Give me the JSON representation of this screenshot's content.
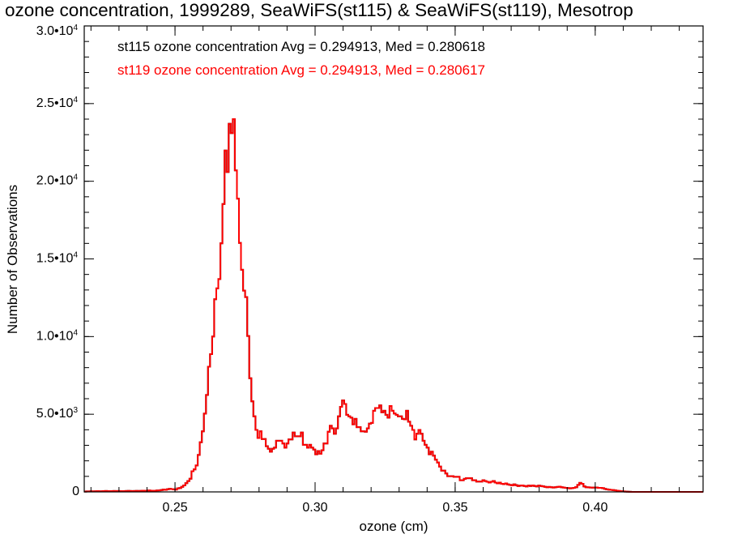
{
  "chart_data": {
    "type": "histogram",
    "title": "ozone concentration, 1999289, SeaWiFS(st115) & SeaWiFS(st119), Mesotrop",
    "xlabel": "ozone (cm)",
    "ylabel": "Number of Observations",
    "xlim": [
      0.2176,
      0.4385
    ],
    "ylim": [
      0,
      30000
    ],
    "x_ticks": [
      {
        "value": 0.25,
        "label": "0.25"
      },
      {
        "value": 0.3,
        "label": "0.30"
      },
      {
        "value": 0.35,
        "label": "0.35"
      },
      {
        "value": 0.4,
        "label": "0.40"
      }
    ],
    "y_ticks": [
      {
        "value": 0,
        "mantissa": "0",
        "exp": ""
      },
      {
        "value": 5000,
        "mantissa": "5.0•10",
        "exp": "3"
      },
      {
        "value": 10000,
        "mantissa": "1.0•10",
        "exp": "4"
      },
      {
        "value": 15000,
        "mantissa": "1.5•10",
        "exp": "4"
      },
      {
        "value": 20000,
        "mantissa": "2.0•10",
        "exp": "4"
      },
      {
        "value": 25000,
        "mantissa": "2.5•10",
        "exp": "4"
      },
      {
        "value": 30000,
        "mantissa": "3.0•10",
        "exp": "4"
      }
    ],
    "x_minor_step": 0.01,
    "y_minor_step": 1000,
    "grid": false,
    "legend_placement": "top-left",
    "series": [
      {
        "name": "st115",
        "color": "#000000",
        "label": "st115 ozone concentration Avg = 0.294913, Med = 0.280618"
      },
      {
        "name": "st119",
        "color": "#ff0000",
        "label": "st119 ozone concentration Avg = 0.294913, Med = 0.280617"
      }
    ],
    "counts": [
      20,
      30,
      30,
      40,
      30,
      40,
      50,
      40,
      40,
      50,
      60,
      50,
      40,
      50,
      60,
      50,
      60,
      50,
      40,
      50,
      60,
      70,
      60,
      50,
      60,
      70,
      60,
      70,
      80,
      70,
      80,
      90,
      80,
      70,
      80,
      90,
      100,
      120,
      150,
      130,
      170,
      200,
      180,
      160,
      150,
      230,
      250,
      330,
      420,
      560,
      700,
      850,
      1330,
      1450,
      1700,
      2380,
      3200,
      3900,
      5040,
      6240,
      8060,
      8870,
      10000,
      12400,
      13100,
      13700,
      16000,
      18530,
      21980,
      20600,
      23700,
      23100,
      24000,
      20700,
      18880,
      16030,
      14300,
      12960,
      12540,
      10040,
      7320,
      5830,
      4870,
      3990,
      3470,
      3900,
      3400,
      3400,
      2940,
      2780,
      2590,
      2780,
      2850,
      3290,
      3290,
      3290,
      3120,
      2850,
      3120,
      3380,
      3380,
      3820,
      3580,
      3580,
      3580,
      3820,
      3030,
      3030,
      2850,
      3030,
      2850,
      2730,
      2420,
      2630,
      2450,
      2680,
      3120,
      3120,
      3870,
      4260,
      4090,
      3740,
      4090,
      4870,
      5480,
      5890,
      5660,
      4960,
      4870,
      4780,
      4350,
      4700,
      4170,
      4170,
      3900,
      3900,
      3870,
      4090,
      4400,
      4440,
      5220,
      5400,
      5400,
      5570,
      5130,
      5220,
      4960,
      4780,
      5530,
      5220,
      5050,
      4960,
      4870,
      4870,
      4700,
      4670,
      5220,
      4520,
      4260,
      3990,
      3380,
      3740,
      3990,
      3740,
      3290,
      3030,
      2850,
      2420,
      2590,
      2330,
      2070,
      1890,
      1630,
      1370,
      1370,
      1190,
      1010,
      1010,
      1010,
      970,
      970,
      970,
      750,
      750,
      840,
      880,
      880,
      880,
      750,
      750,
      670,
      670,
      670,
      750,
      700,
      650,
      600,
      650,
      700,
      600,
      550,
      600,
      520,
      500,
      550,
      480,
      450,
      420,
      480,
      430,
      380,
      400,
      420,
      380,
      350,
      400,
      380,
      420,
      380,
      350,
      400,
      380,
      360,
      330,
      300,
      320,
      300,
      280,
      300,
      320,
      340,
      300,
      280,
      260,
      250,
      230,
      240,
      260,
      300,
      450,
      580,
      520,
      350,
      300,
      290,
      280,
      270,
      280,
      280,
      260,
      260,
      240,
      200,
      160,
      140,
      130,
      120,
      100,
      80,
      60,
      40,
      30,
      20,
      10,
      5,
      0,
      0,
      0,
      0,
      0,
      0,
      0,
      0,
      0,
      0,
      0,
      0,
      0,
      0,
      0,
      0,
      0,
      0,
      0,
      0,
      0,
      0,
      0,
      0,
      0,
      0,
      0,
      0,
      0,
      0,
      0,
      0,
      0,
      0,
      0
    ]
  }
}
